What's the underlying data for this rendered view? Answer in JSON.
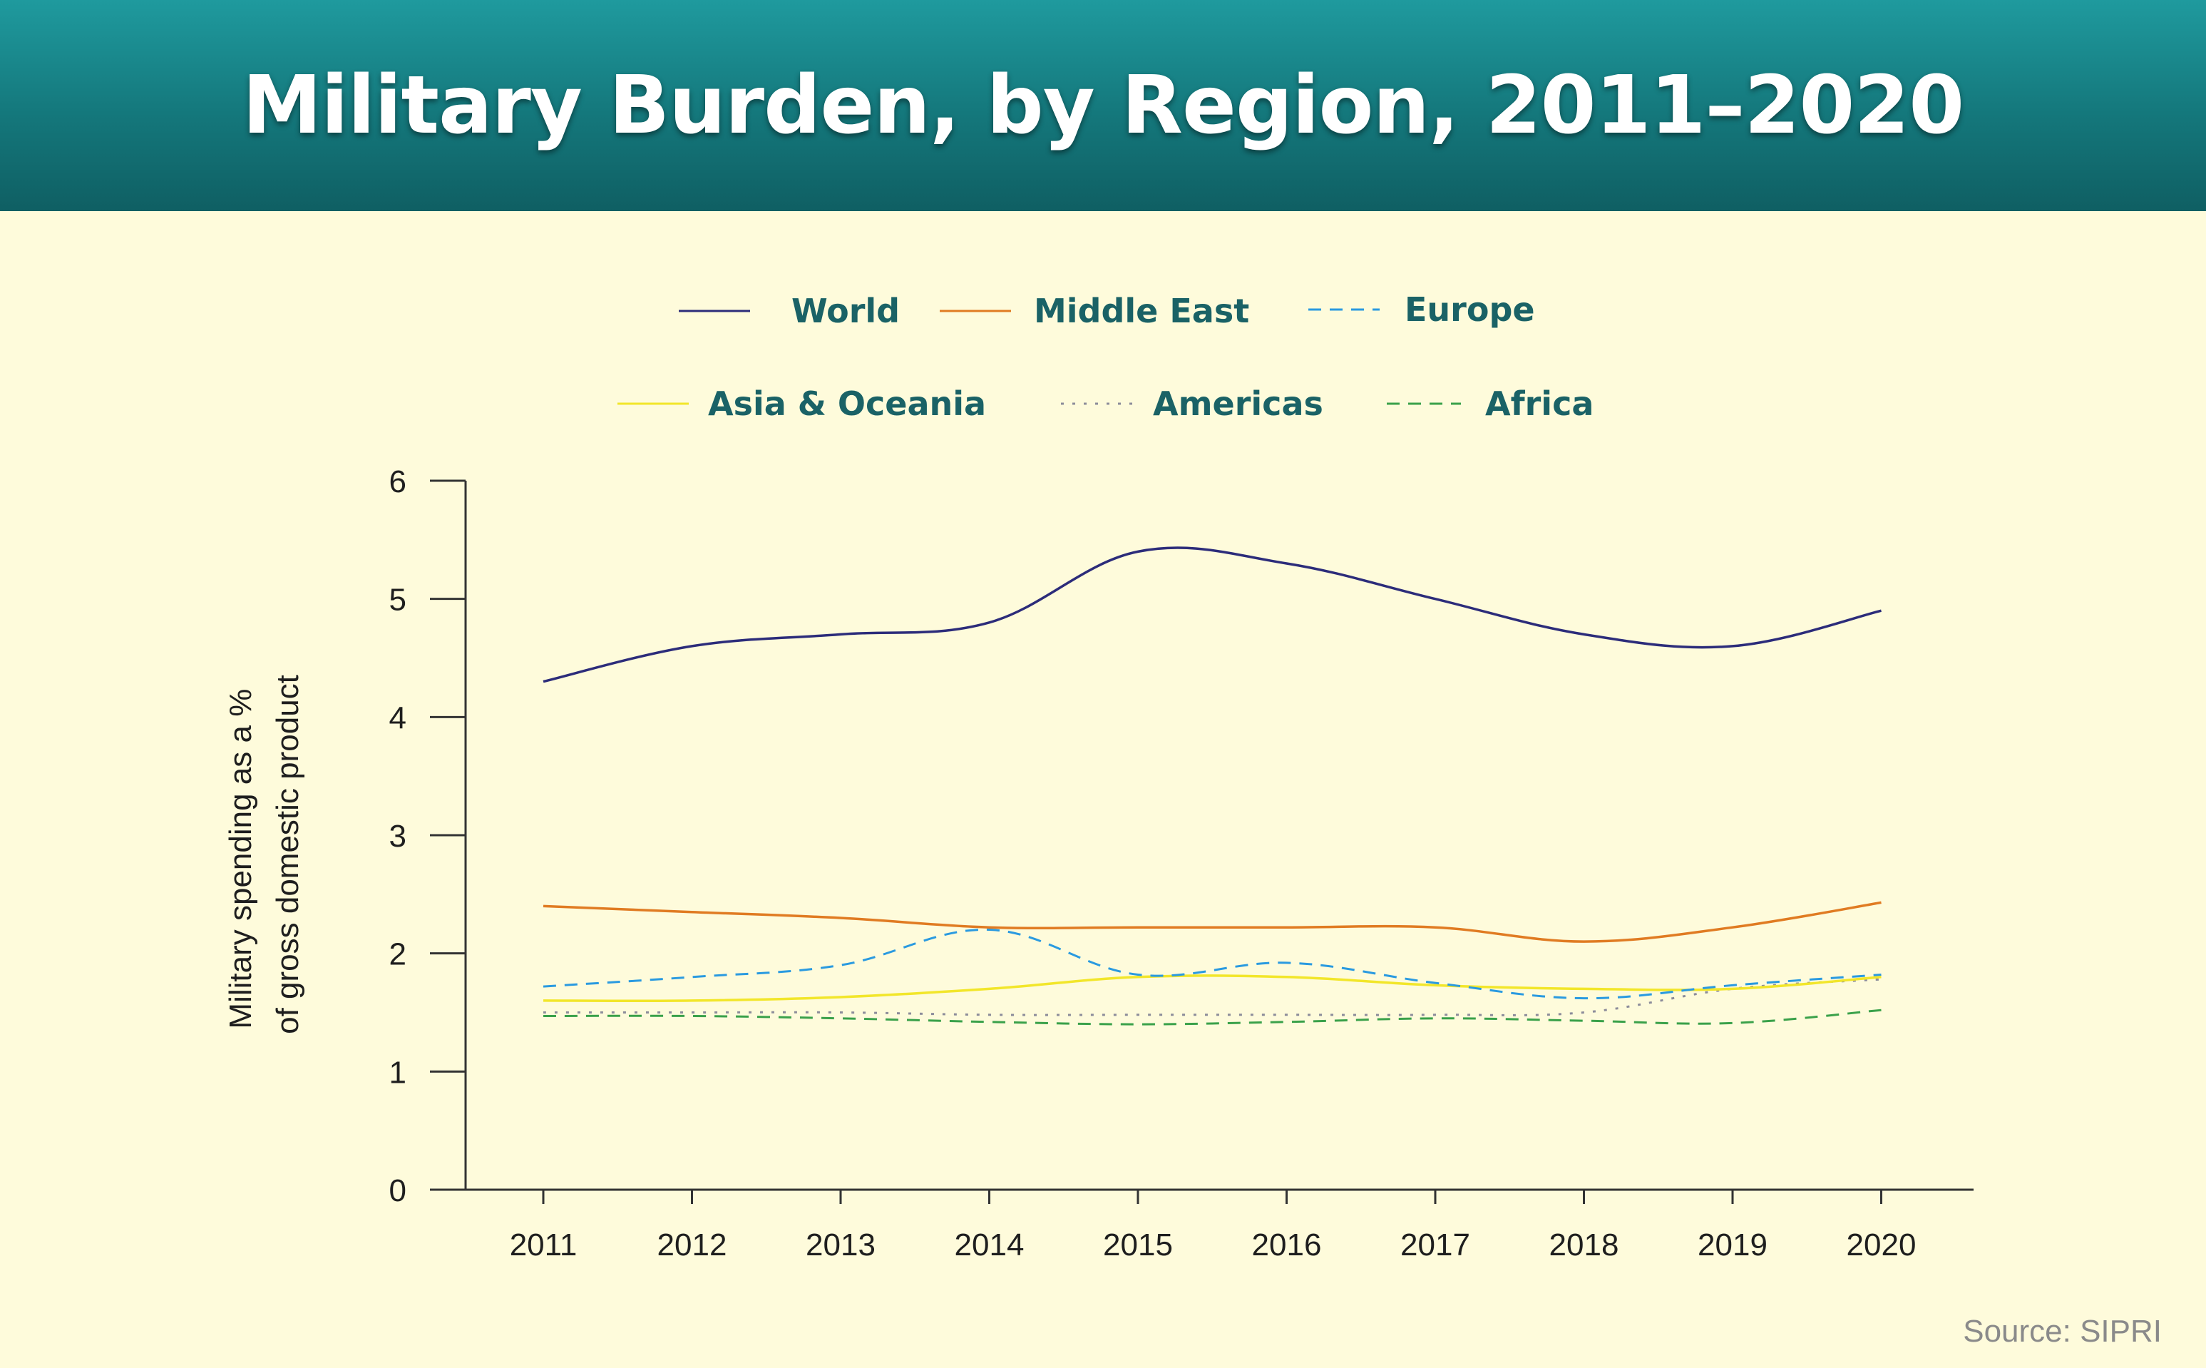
{
  "header": {
    "title": "Military Burden, by Region, 2011–2020"
  },
  "source": "Source: SIPRI",
  "chart_data": {
    "type": "line",
    "title": "Military Burden, by Region, 2011–2020",
    "xlabel": "",
    "ylabel_lines": [
      "Military spending as a %",
      "of gross domestic product"
    ],
    "ylim": [
      0,
      6
    ],
    "yticks": [
      "0",
      "1",
      "2",
      "3",
      "4",
      "5",
      "6"
    ],
    "categories": [
      "2011",
      "2012",
      "2013",
      "2014",
      "2015",
      "2016",
      "2017",
      "2018",
      "2019",
      "2020"
    ],
    "grid": false,
    "legend_position": "top",
    "series": [
      {
        "name": "World",
        "color": "#2c2c7a",
        "dash": "solid",
        "values": [
          4.3,
          4.6,
          4.7,
          4.8,
          5.4,
          5.3,
          5.0,
          4.7,
          4.6,
          4.9
        ]
      },
      {
        "name": "Middle East",
        "color": "#e07b22",
        "dash": "solid",
        "values": [
          2.4,
          2.35,
          2.3,
          2.22,
          2.22,
          2.22,
          2.22,
          2.1,
          2.22,
          2.43
        ]
      },
      {
        "name": "Europe",
        "color": "#2a9ae0",
        "dash": "dashed",
        "values": [
          1.72,
          1.8,
          1.9,
          2.2,
          1.82,
          1.92,
          1.75,
          1.62,
          1.73,
          1.82
        ]
      },
      {
        "name": "Asia & Oceania",
        "color": "#f2e62a",
        "dash": "solid",
        "values": [
          1.6,
          1.6,
          1.63,
          1.7,
          1.8,
          1.8,
          1.73,
          1.7,
          1.7,
          1.8
        ]
      },
      {
        "name": "Americas",
        "color": "#8c8c9a",
        "dash": "dotted",
        "values": [
          1.5,
          1.5,
          1.5,
          1.48,
          1.48,
          1.48,
          1.48,
          1.5,
          1.7,
          1.78
        ]
      },
      {
        "name": "Africa",
        "color": "#3aa14a",
        "dash": "dashed",
        "values": [
          1.47,
          1.47,
          1.45,
          1.42,
          1.4,
          1.42,
          1.45,
          1.43,
          1.41,
          1.52
        ]
      }
    ]
  }
}
